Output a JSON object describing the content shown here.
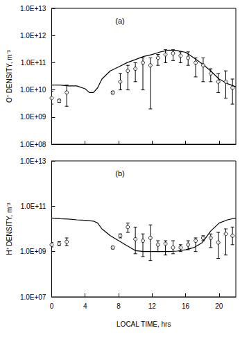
{
  "chart_data": [
    {
      "type": "line",
      "annotation": "(a)",
      "ylabel": "O⁺ DENSITY, m⁻³",
      "log": "y",
      "grid": false,
      "tick_labels": "y",
      "xlim": [
        0,
        22
      ],
      "xticks": [
        0,
        4,
        8,
        12,
        16,
        20
      ],
      "ylim": [
        100000000,
        10000000000000
      ],
      "yticks": [
        {
          "value": 100000000,
          "label": "1.0E+08"
        },
        {
          "value": 1000000000,
          "label": "1.0E+09"
        },
        {
          "value": 10000000000,
          "label": "1.0E+10"
        },
        {
          "value": 100000000000,
          "label": "1.0E+11"
        },
        {
          "value": 1000000000000,
          "label": "1.0E+12"
        },
        {
          "value": 10000000000000,
          "label": "1.0E+13"
        }
      ],
      "series": [
        {
          "type": "line",
          "color": "#000000",
          "line_style": "solid",
          "x": [
            0,
            1,
            2,
            3,
            4,
            4.5,
            5,
            5.5,
            6,
            7,
            8,
            9,
            10,
            11,
            12,
            13,
            14,
            15,
            16,
            17,
            18,
            19,
            20,
            21,
            22
          ],
          "values": [
            15000000000,
            15000000000,
            14000000000,
            14000000000,
            11000000000,
            8000000000,
            8000000000,
            12000000000,
            25000000000,
            50000000000,
            70000000000,
            100000000000,
            130000000000,
            170000000000,
            200000000000,
            250000000000,
            290000000000,
            280000000000,
            240000000000,
            150000000000,
            90000000000,
            50000000000,
            25000000000,
            17000000000,
            13000000000
          ]
        },
        {
          "type": "scatter",
          "color": "#000000",
          "marker": "circle",
          "x": [
            0,
            0.9,
            1.8,
            7.3,
            8.2,
            9.1,
            10,
            10.9,
            11.8,
            12.7,
            13.6,
            14.5,
            15.4,
            16.3,
            17.2,
            18.1,
            19,
            19.9,
            20.8,
            21.6
          ],
          "values": [
            5000000000,
            4000000000,
            8000000000,
            8000000000,
            20000000000,
            50000000000,
            60000000000,
            100000000000,
            80000000000,
            150000000000,
            200000000000,
            220000000000,
            180000000000,
            150000000000,
            100000000000,
            80000000000,
            40000000000,
            20000000000,
            20000000000,
            12000000000
          ],
          "lower": [
            3000000000,
            3500000000,
            2500000000,
            7000000000,
            10000000000,
            10000000000,
            20000000000,
            10000000000,
            2000000000,
            80000000000,
            100000000000,
            120000000000,
            100000000000,
            80000000000,
            30000000000,
            20000000000,
            20000000000,
            8000000000,
            5000000000,
            3000000000
          ],
          "upper": [
            9000000000,
            4500000000,
            15000000000,
            9000000000,
            40000000000,
            80000000000,
            100000000000,
            150000000000,
            150000000000,
            200000000000,
            300000000000,
            300000000000,
            250000000000,
            250000000000,
            150000000000,
            150000000000,
            60000000000,
            40000000000,
            50000000000,
            25000000000
          ]
        }
      ]
    },
    {
      "type": "line",
      "annotation": "(b)",
      "xlabel": "LOCAL TIME, hrs",
      "ylabel": "H⁺ DENSITY, m⁻³",
      "log": "y",
      "grid": false,
      "xlim": [
        0,
        22
      ],
      "xticks": [
        0,
        4,
        8,
        12,
        16,
        20
      ],
      "ylim": [
        10000000,
        10000000000000
      ],
      "yticks": [
        {
          "value": 10000000,
          "label": "1.0E+07"
        },
        {
          "value": 1000000000,
          "label": "1.0E+09"
        },
        {
          "value": 100000000000,
          "label": "1.0E+11"
        },
        {
          "value": 10000000000000,
          "label": "1.0E+13"
        }
      ],
      "series": [
        {
          "type": "line",
          "color": "#000000",
          "line_style": "solid",
          "x": [
            0,
            1,
            2,
            3,
            4,
            5,
            5.5,
            6,
            7,
            8,
            9,
            10,
            11,
            12,
            13,
            14,
            15,
            16,
            17,
            18,
            19,
            20,
            21,
            22
          ],
          "values": [
            30000000000,
            28000000000,
            27000000000,
            25000000000,
            24000000000,
            22000000000,
            18000000000,
            10000000000,
            5000000000,
            3000000000,
            1800000000,
            1100000000,
            1000000000,
            1000000000,
            1000000000,
            1000000000,
            1050000000,
            1200000000,
            1500000000,
            2500000000,
            8000000000,
            18000000000,
            25000000000,
            30000000000
          ]
        },
        {
          "type": "scatter",
          "color": "#000000",
          "marker": "circle",
          "x": [
            0,
            0.9,
            1.8,
            7.3,
            8.2,
            9.1,
            10,
            10.9,
            11.8,
            12.7,
            13.6,
            14.5,
            15.4,
            16.3,
            17.2,
            18.1,
            19,
            19.9,
            20.8,
            21.6
          ],
          "values": [
            2000000000,
            2200000000,
            2700000000,
            1500000000,
            5000000000,
            12000000000,
            3500000000,
            3000000000,
            4000000000,
            2000000000,
            2200000000,
            1500000000,
            1500000000,
            2000000000,
            3000000000,
            4000000000,
            4000000000,
            2500000000,
            6000000000,
            5000000000
          ],
          "lower": [
            1600000000,
            1800000000,
            1800000000,
            1300000000,
            4000000000,
            7000000000,
            800000000,
            600000000,
            400000000,
            1000000000,
            700000000,
            800000000,
            1000000000,
            1200000000,
            1000000000,
            3000000000,
            1500000000,
            500000000,
            700000000,
            2000000000
          ],
          "upper": [
            2500000000,
            2700000000,
            4000000000,
            1700000000,
            6000000000,
            18000000000,
            12000000000,
            6000000000,
            15000000000,
            3000000000,
            3000000000,
            3000000000,
            2000000000,
            3000000000,
            4000000000,
            5000000000,
            6000000000,
            7000000000,
            10000000000,
            12000000000
          ]
        }
      ]
    }
  ]
}
